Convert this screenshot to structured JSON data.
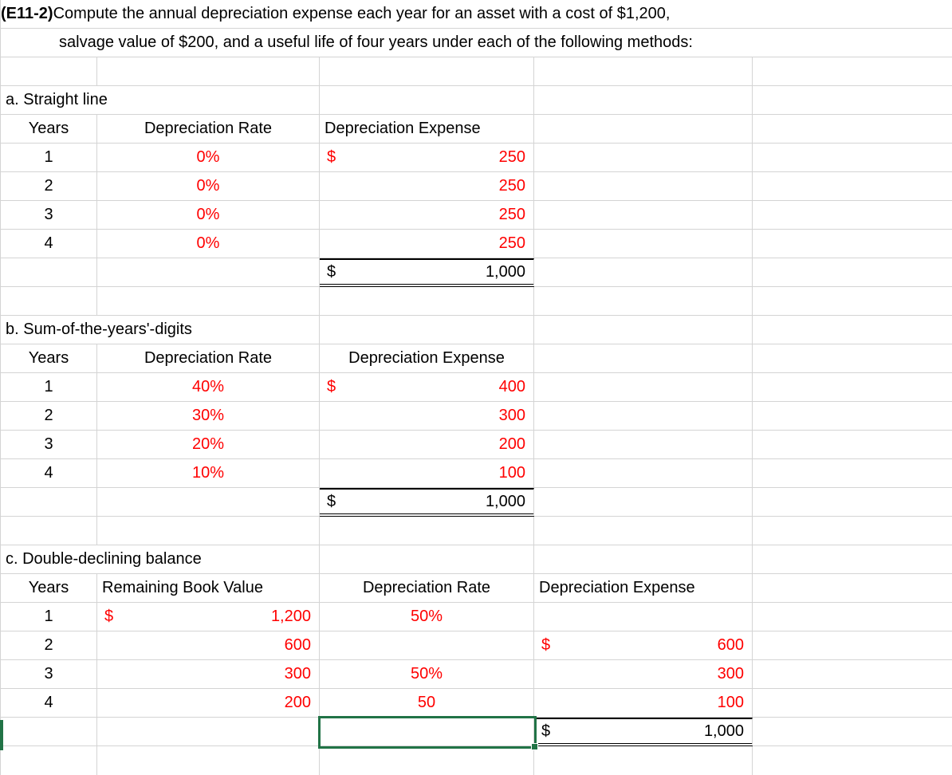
{
  "colors": {
    "accent_red": "#FF0000",
    "selection_green": "#217346",
    "gridline": "#D4D4D4"
  },
  "title": {
    "tag": "(E11-2)",
    "line1": " Compute the annual depreciation expense each year for an asset with a cost of $1,200,",
    "line2": "salvage value of $200, and a useful life of four years under each of the following methods:"
  },
  "sections": {
    "a": {
      "label": "a. Straight line",
      "col_years": "Years",
      "col_rate": "Depreciation Rate",
      "col_expense": "Depreciation Expense",
      "rows": [
        {
          "year": "1",
          "rate": "0%",
          "currency": "$",
          "expense": "250"
        },
        {
          "year": "2",
          "rate": "0%",
          "currency": "",
          "expense": "250"
        },
        {
          "year": "3",
          "rate": "0%",
          "currency": "",
          "expense": "250"
        },
        {
          "year": "4",
          "rate": "0%",
          "currency": "",
          "expense": "250"
        }
      ],
      "total_currency": "$",
      "total": "1,000"
    },
    "b": {
      "label": "b. Sum-of-the-years'-digits",
      "col_years": "Years",
      "col_rate": "Depreciation Rate",
      "col_expense": "Depreciation Expense",
      "rows": [
        {
          "year": "1",
          "rate": "40%",
          "currency": "$",
          "expense": "400"
        },
        {
          "year": "2",
          "rate": "30%",
          "currency": "",
          "expense": "300"
        },
        {
          "year": "3",
          "rate": "20%",
          "currency": "",
          "expense": "200"
        },
        {
          "year": "4",
          "rate": "10%",
          "currency": "",
          "expense": "100"
        }
      ],
      "total_currency": "$",
      "total": "1,000"
    },
    "c": {
      "label": "c. Double-declining balance",
      "col_years": "Years",
      "col_book": "Remaining Book Value",
      "col_rate": "Depreciation Rate",
      "col_expense": "Depreciation Expense",
      "rows": [
        {
          "year": "1",
          "book_currency": "$",
          "book": "1,200",
          "rate": "50%",
          "exp_currency": "",
          "expense": ""
        },
        {
          "year": "2",
          "book_currency": "",
          "book": "600",
          "rate": "",
          "exp_currency": "$",
          "expense": "600"
        },
        {
          "year": "3",
          "book_currency": "",
          "book": "300",
          "rate": "50%",
          "exp_currency": "",
          "expense": "300"
        },
        {
          "year": "4",
          "book_currency": "",
          "book": "200",
          "rate": "50",
          "exp_currency": "",
          "expense": "100"
        }
      ],
      "total_currency": "$",
      "total": "1,000"
    }
  }
}
